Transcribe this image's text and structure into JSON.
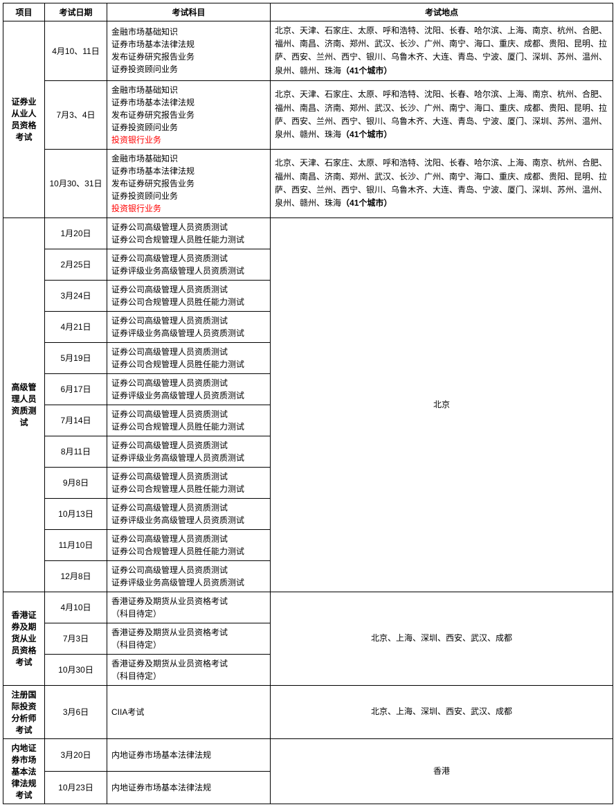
{
  "headers": {
    "proj": "项目",
    "date": "考试日期",
    "subj": "考试科目",
    "loc": "考试地点"
  },
  "cities": {
    "list41": "北京、天津、石家庄、太原、呼和浩特、沈阳、长春、哈尔滨、上海、南京、杭州、合肥、福州、南昌、济南、郑州、武汉、长沙、广州、南宁、海口、重庆、成都、贵阳、昆明、拉萨、西安、兰州、西宁、银川、乌鲁木齐、大连、青岛、宁波、厦门、深圳、苏州、温州、泉州、赣州、珠海",
    "suffix41": "（41个城市）",
    "beijing": "北京",
    "six_cities": "北京、上海、深圳、西安、武汉、成都",
    "hongkong": "香港"
  },
  "groups": [
    {
      "name": "证券业从业人员资格考试",
      "sessions": [
        {
          "date": "4月10、11日",
          "subjects": [
            "金融市场基础知识",
            "证券市场基本法律法规",
            "发布证券研究报告业务",
            "证券投资顾问业务"
          ],
          "loc_key": "cities41"
        },
        {
          "date": "7月3、4日",
          "subjects": [
            "金融市场基础知识",
            "证券市场基本法律法规",
            "发布证券研究报告业务",
            "证券投资顾问业务",
            "投资银行业务"
          ],
          "loc_key": "cities41",
          "red_last": true
        },
        {
          "date": "10月30、31日",
          "subjects": [
            "金融市场基础知识",
            "证券市场基本法律法规",
            "发布证券研究报告业务",
            "证券投资顾问业务",
            "投资银行业务"
          ],
          "loc_key": "cities41",
          "red_last": true
        }
      ]
    },
    {
      "name": "高级管理人员资质测试",
      "merged_loc_key": "beijing",
      "sessions": [
        {
          "date": "1月20日",
          "subjects": [
            "证券公司高级管理人员资质测试",
            "证券公司合规管理人员胜任能力测试"
          ]
        },
        {
          "date": "2月25日",
          "subjects": [
            "证券公司高级管理人员资质测试",
            "证券评级业务高级管理人员资质测试"
          ]
        },
        {
          "date": "3月24日",
          "subjects": [
            "证券公司高级管理人员资质测试",
            "证券公司合规管理人员胜任能力测试"
          ]
        },
        {
          "date": "4月21日",
          "subjects": [
            "证券公司高级管理人员资质测试",
            "证券评级业务高级管理人员资质测试"
          ]
        },
        {
          "date": "5月19日",
          "subjects": [
            "证券公司高级管理人员资质测试",
            "证券公司合规管理人员胜任能力测试"
          ]
        },
        {
          "date": "6月17日",
          "subjects": [
            "证券公司高级管理人员资质测试",
            "证券评级业务高级管理人员资质测试"
          ]
        },
        {
          "date": "7月14日",
          "subjects": [
            "证券公司高级管理人员资质测试",
            "证券公司合规管理人员胜任能力测试"
          ]
        },
        {
          "date": "8月11日",
          "subjects": [
            "证券公司高级管理人员资质测试",
            "证券评级业务高级管理人员资质测试"
          ]
        },
        {
          "date": "9月8日",
          "subjects": [
            "证券公司高级管理人员资质测试",
            "证券公司合规管理人员胜任能力测试"
          ]
        },
        {
          "date": "10月13日",
          "subjects": [
            "证券公司高级管理人员资质测试",
            "证券评级业务高级管理人员资质测试"
          ]
        },
        {
          "date": "11月10日",
          "subjects": [
            "证券公司高级管理人员资质测试",
            "证券公司合规管理人员胜任能力测试"
          ]
        },
        {
          "date": "12月8日",
          "subjects": [
            "证券公司高级管理人员资质测试",
            "证券评级业务高级管理人员资质测试"
          ]
        }
      ]
    },
    {
      "name": "香港证券及期货从业员资格考试",
      "merged_loc_key": "six_cities",
      "sessions": [
        {
          "date": "4月10日",
          "subjects": [
            "香港证券及期货从业员资格考试",
            "（科目待定）"
          ]
        },
        {
          "date": "7月3日",
          "subjects": [
            "香港证券及期货从业员资格考试",
            "（科目待定）"
          ]
        },
        {
          "date": "10月30日",
          "subjects": [
            "香港证券及期货从业员资格考试",
            "（科目待定）"
          ]
        }
      ]
    },
    {
      "name": "注册国际投资分析师考试",
      "merged_loc_key": "six_cities",
      "sessions": [
        {
          "date": "3月6日",
          "subjects": [
            "CIIA考试"
          ]
        }
      ]
    },
    {
      "name": "内地证券市场基本法律法规考试",
      "merged_loc_key": "hongkong",
      "sessions": [
        {
          "date": "3月20日",
          "subjects": [
            "内地证券市场基本法律法规"
          ]
        },
        {
          "date": "10月23日",
          "subjects": [
            "内地证券市场基本法律法规"
          ]
        }
      ]
    }
  ]
}
